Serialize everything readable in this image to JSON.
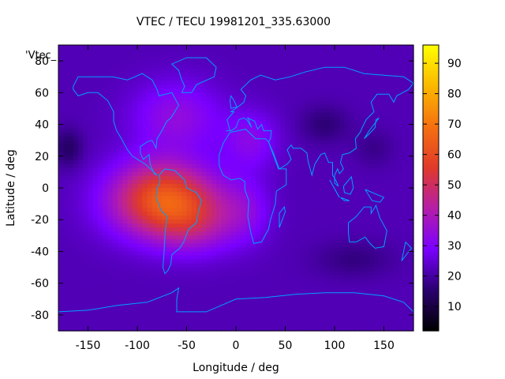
{
  "chart_data": {
    "type": "heatmap",
    "title": "VTEC / TECU 19981201_335.63000",
    "xlabel": "Longitude / deg",
    "ylabel": "Latitude / deg",
    "series_label": "'Vtec_",
    "xlim": [
      -180,
      180
    ],
    "ylim": [
      -90,
      90
    ],
    "xticks": [
      -150,
      -100,
      -50,
      0,
      50,
      100,
      150
    ],
    "yticks": [
      -80,
      -60,
      -40,
      -20,
      0,
      20,
      40,
      60,
      80
    ],
    "colorbar": {
      "min": 2,
      "max": 96,
      "ticks": [
        10,
        20,
        30,
        40,
        50,
        60,
        70,
        80,
        90
      ],
      "palette": [
        "#000000",
        "#2a0070",
        "#7a00ff",
        "#b51ea8",
        "#e03a2a",
        "#f57010",
        "#fbb800",
        "#ffff00"
      ]
    },
    "field": {
      "background_tecu": 22,
      "features": [
        {
          "lon": -70,
          "lat": -10,
          "sx": 55,
          "sy": 22,
          "amp": 38
        },
        {
          "lon": -40,
          "lat": -25,
          "sx": 40,
          "sy": 18,
          "amp": 10
        },
        {
          "lon": -80,
          "lat": 5,
          "sx": 45,
          "sy": 20,
          "amp": 8
        },
        {
          "lon": -60,
          "lat": 45,
          "sx": 45,
          "sy": 22,
          "amp": 12
        },
        {
          "lon": 15,
          "lat": 30,
          "sx": 28,
          "sy": 18,
          "amp": 10
        },
        {
          "lon": 10,
          "lat": -15,
          "sx": 25,
          "sy": 20,
          "amp": 8
        },
        {
          "lon": -170,
          "lat": 25,
          "sx": 15,
          "sy": 12,
          "amp": -8
        },
        {
          "lon": 90,
          "lat": 40,
          "sx": 25,
          "sy": 12,
          "amp": -6
        },
        {
          "lon": 120,
          "lat": -45,
          "sx": 40,
          "sy": 12,
          "amp": -5
        },
        {
          "lon": 140,
          "lat": 25,
          "sx": 20,
          "sy": 12,
          "amp": -4
        }
      ]
    }
  },
  "colors": {
    "coastline": "#00a0ff",
    "frame": "#000000"
  }
}
